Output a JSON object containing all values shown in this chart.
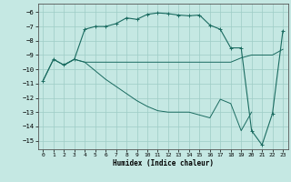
{
  "xlabel": "Humidex (Indice chaleur)",
  "xlim": [
    -0.5,
    23.5
  ],
  "ylim": [
    -15.6,
    -5.4
  ],
  "yticks": [
    -6,
    -7,
    -8,
    -9,
    -10,
    -11,
    -12,
    -13,
    -14,
    -15
  ],
  "xticks": [
    0,
    1,
    2,
    3,
    4,
    5,
    6,
    7,
    8,
    9,
    10,
    11,
    12,
    13,
    14,
    15,
    16,
    17,
    18,
    19,
    20,
    21,
    22,
    23
  ],
  "bg_color": "#c5e8e3",
  "grid_color": "#9eccc6",
  "line_color": "#1a6b60",
  "curve1_x": [
    0,
    1,
    2,
    3,
    4,
    5,
    6,
    7,
    8,
    9,
    10,
    11,
    12,
    13,
    14,
    15,
    16,
    17,
    18,
    19,
    20,
    21,
    22,
    23
  ],
  "curve1_y": [
    -10.8,
    -9.3,
    -9.7,
    -9.3,
    -7.2,
    -7.0,
    -7.0,
    -6.8,
    -6.4,
    -6.5,
    -6.15,
    -6.05,
    -6.1,
    -6.2,
    -6.25,
    -6.2,
    -6.9,
    -7.2,
    -8.5,
    -8.5,
    -14.3,
    -15.3,
    -13.1,
    -7.3
  ],
  "curve2_x": [
    0,
    1,
    2,
    3,
    4,
    10,
    11,
    12,
    13,
    14,
    15,
    16,
    17,
    18,
    19,
    20,
    21,
    22,
    23
  ],
  "curve2_y": [
    -10.8,
    -9.3,
    -9.7,
    -9.3,
    -9.5,
    -9.5,
    -9.5,
    -9.5,
    -9.5,
    -9.5,
    -9.5,
    -9.5,
    -9.5,
    -9.5,
    -9.2,
    -9.0,
    -9.0,
    -9.0,
    -8.6
  ],
  "curve3_x": [
    2,
    3,
    4,
    5,
    6,
    7,
    8,
    9,
    10,
    11,
    12,
    13,
    14,
    15,
    16,
    17,
    18,
    19,
    20
  ],
  "curve3_y": [
    -9.7,
    -9.3,
    -9.5,
    -10.1,
    -10.7,
    -11.2,
    -11.7,
    -12.2,
    -12.6,
    -12.9,
    -13.0,
    -13.0,
    -13.0,
    -13.2,
    -13.4,
    -12.1,
    -12.4,
    -14.3,
    -13.0
  ]
}
